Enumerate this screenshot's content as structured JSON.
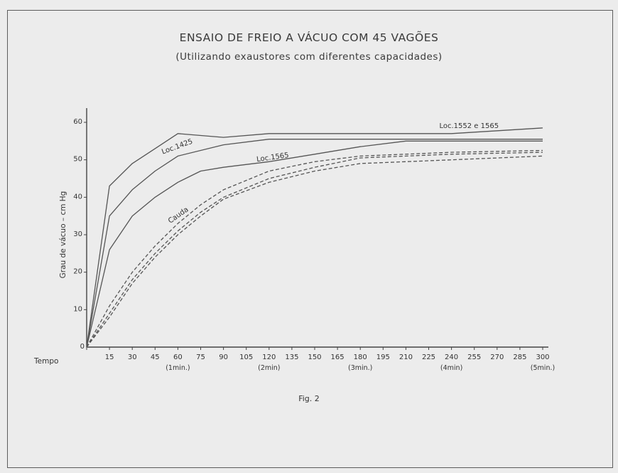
{
  "page": {
    "title_line1": "ENSAIO DE FREIO A VÁCUO COM 45 VAGÕES",
    "title_line2": "(Utilizando exaustores com diferentes capacidades)",
    "figure_label": "Fig. 2"
  },
  "chart_data": {
    "type": "line",
    "title": "ENSAIO DE FREIO A VÁCUO COM 45 VAGÕES",
    "subtitle": "(Utilizando exaustores com diferentes capacidades)",
    "xlabel": "Tempo",
    "ylabel": "Grau de vácuo – cm Hg",
    "xlim": [
      0,
      300
    ],
    "ylim": [
      0,
      60
    ],
    "x_ticks": [
      0,
      15,
      30,
      45,
      60,
      75,
      90,
      105,
      120,
      135,
      150,
      165,
      180,
      195,
      210,
      225,
      240,
      255,
      270,
      285,
      300
    ],
    "x_tick_labels": [
      "0",
      "15",
      "30",
      "45",
      "60",
      "75",
      "90",
      "105",
      "120",
      "135",
      "150",
      "165",
      "180",
      "195",
      "210",
      "225",
      "240",
      "255",
      "270",
      "285",
      "300"
    ],
    "x_sub_labels": [
      {
        "x": 60,
        "label": "(1min.)"
      },
      {
        "x": 120,
        "label": "(2min)"
      },
      {
        "x": 180,
        "label": "(3min.)"
      },
      {
        "x": 240,
        "label": "(4min)"
      },
      {
        "x": 300,
        "label": "(5min.)"
      }
    ],
    "y_ticks": [
      10,
      20,
      30,
      40,
      50,
      60
    ],
    "y_tick_labels": [
      "10",
      "20",
      "30",
      "40",
      "50",
      "60"
    ],
    "grid": false,
    "series": [
      {
        "name": "Loc.1552 e 1565",
        "style": "solid",
        "color": "#555555",
        "points": [
          [
            0,
            0
          ],
          [
            15,
            43
          ],
          [
            30,
            49
          ],
          [
            45,
            53
          ],
          [
            60,
            57
          ],
          [
            90,
            56
          ],
          [
            120,
            57
          ],
          [
            180,
            57
          ],
          [
            240,
            57
          ],
          [
            300,
            58.5
          ]
        ]
      },
      {
        "name": "Loc.1425",
        "style": "solid",
        "color": "#555555",
        "points": [
          [
            0,
            0
          ],
          [
            15,
            35
          ],
          [
            30,
            42
          ],
          [
            45,
            47
          ],
          [
            60,
            51
          ],
          [
            90,
            54
          ],
          [
            120,
            55.5
          ],
          [
            180,
            55.5
          ],
          [
            240,
            55.5
          ],
          [
            300,
            55.5
          ]
        ]
      },
      {
        "name": "Loc.1565",
        "style": "solid",
        "color": "#555555",
        "points": [
          [
            0,
            0
          ],
          [
            15,
            26
          ],
          [
            30,
            35
          ],
          [
            45,
            40
          ],
          [
            60,
            44
          ],
          [
            75,
            47
          ],
          [
            90,
            48
          ],
          [
            120,
            49.5
          ],
          [
            150,
            51.5
          ],
          [
            180,
            53.5
          ],
          [
            210,
            55
          ],
          [
            240,
            55
          ],
          [
            300,
            55
          ]
        ]
      },
      {
        "name": "Cauda",
        "style": "dashed",
        "color": "#555555",
        "points": [
          [
            0,
            0
          ],
          [
            15,
            11
          ],
          [
            30,
            20
          ],
          [
            45,
            27
          ],
          [
            60,
            33
          ],
          [
            75,
            38
          ],
          [
            90,
            42
          ],
          [
            120,
            47
          ],
          [
            150,
            49.5
          ],
          [
            180,
            51
          ],
          [
            240,
            52
          ],
          [
            300,
            52.5
          ]
        ]
      },
      {
        "name": "",
        "style": "dashed",
        "color": "#555555",
        "points": [
          [
            0,
            0
          ],
          [
            15,
            9
          ],
          [
            30,
            18
          ],
          [
            45,
            25
          ],
          [
            60,
            31
          ],
          [
            75,
            36
          ],
          [
            90,
            40
          ],
          [
            120,
            45
          ],
          [
            150,
            48
          ],
          [
            180,
            50.5
          ],
          [
            240,
            51.5
          ],
          [
            300,
            52
          ]
        ]
      },
      {
        "name": "",
        "style": "dashed",
        "color": "#555555",
        "points": [
          [
            0,
            0
          ],
          [
            15,
            8
          ],
          [
            30,
            17
          ],
          [
            45,
            24
          ],
          [
            60,
            30
          ],
          [
            75,
            35
          ],
          [
            90,
            39.5
          ],
          [
            120,
            44
          ],
          [
            150,
            47
          ],
          [
            180,
            49
          ],
          [
            240,
            50
          ],
          [
            300,
            51
          ]
        ]
      }
    ],
    "annotations": [
      {
        "text": "Loc.1552 e 1565",
        "x": 232,
        "y": 58.5,
        "rotate": 0
      },
      {
        "text": "Loc.1425",
        "x": 50,
        "y": 51.5,
        "rotate": -20
      },
      {
        "text": "Loc.1565",
        "x": 112,
        "y": 49.5,
        "rotate": -8
      },
      {
        "text": "Cauda",
        "x": 55,
        "y": 33,
        "rotate": -35
      }
    ]
  }
}
